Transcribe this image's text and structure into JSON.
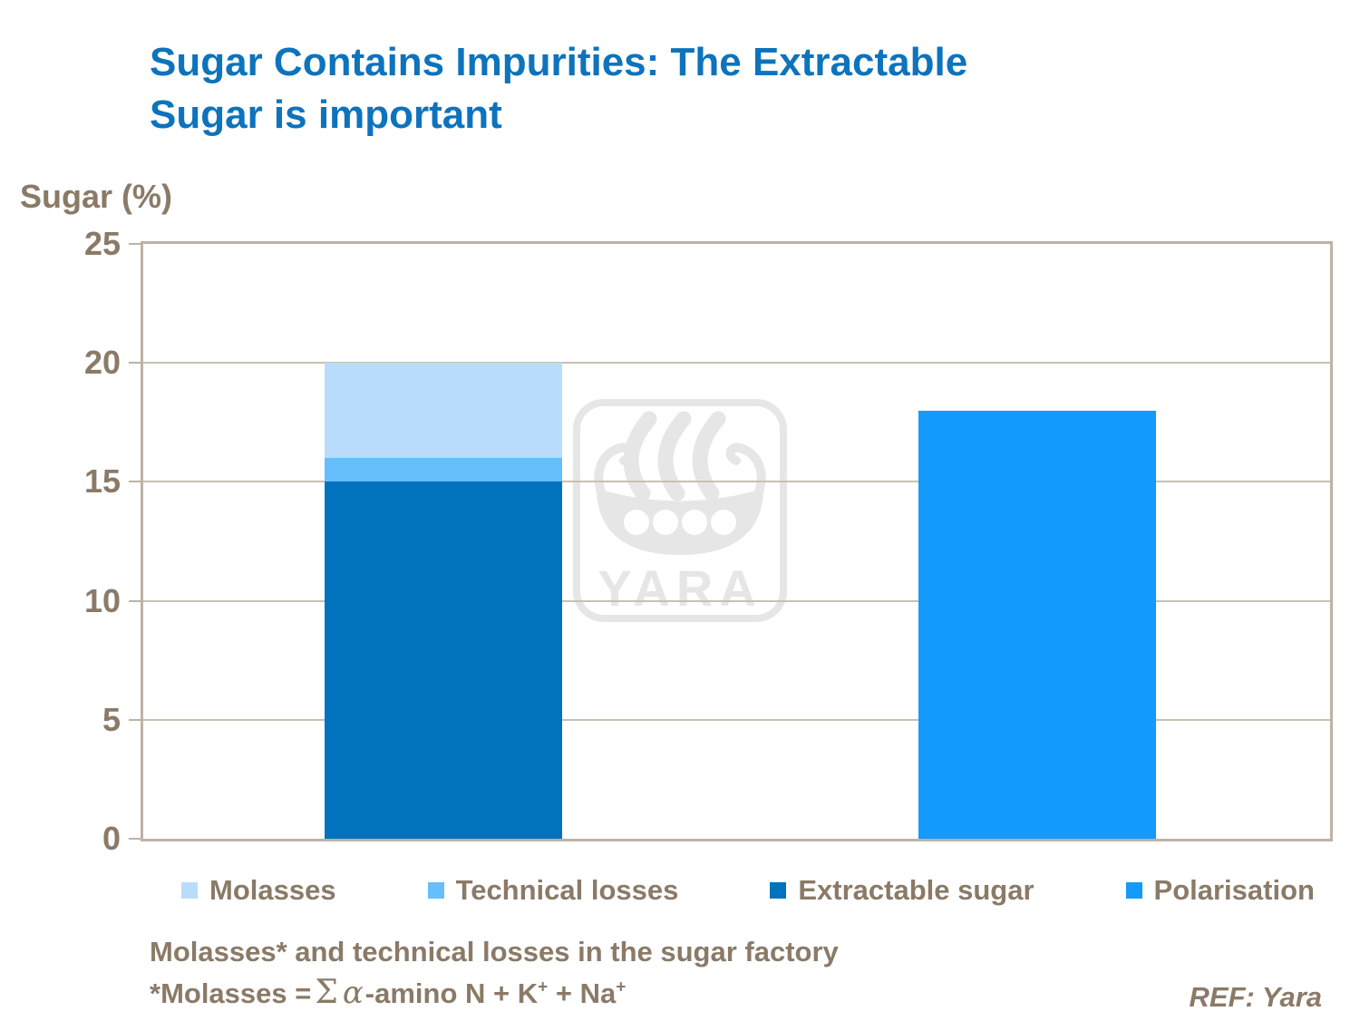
{
  "title": {
    "line1": "Sugar Contains Impurities: The Extractable",
    "line2": "Sugar is important"
  },
  "y_axis_title": "Sugar (%)",
  "legend": {
    "items": [
      {
        "label": "Molasses",
        "color_key": "molasses"
      },
      {
        "label": "Technical losses",
        "color_key": "technical"
      },
      {
        "label": "Extractable sugar",
        "color_key": "extractable"
      },
      {
        "label": "Polarisation",
        "color_key": "polarisation"
      }
    ]
  },
  "footnote": {
    "line1": "Molasses* and technical losses in the sugar factory",
    "formula": {
      "prefix": "*Molasses =",
      "sigma": "Σ",
      "alpha": "α",
      "body": "-amino N + K",
      "sup1": "+",
      "body2": " + Na",
      "sup2": "+"
    }
  },
  "reference": "REF: Yara",
  "watermark": {
    "name": "yara-logo",
    "text": "YARA"
  },
  "colors": {
    "title_blue": "#0D73BD",
    "text_brown": "#8A7A67",
    "axis_border": "#BEB2A3",
    "gridline": "#C9C0B1",
    "watermark_gray": "#E6E6E6",
    "molasses": "#B9DCFC",
    "technical": "#66BEFC",
    "extractable": "#0072BE",
    "polarisation": "#149AFB"
  },
  "chart_data": {
    "type": "bar",
    "stacked": true,
    "title": "Sugar Contains Impurities: The Extractable Sugar is important",
    "xlabel": "",
    "ylabel": "Sugar (%)",
    "ylim": [
      0,
      25
    ],
    "yticks": [
      0,
      5,
      10,
      15,
      20,
      25
    ],
    "grid": true,
    "legend_position": "bottom",
    "categories": [
      "",
      ""
    ],
    "bars": [
      {
        "total": 20,
        "segments": [
          {
            "name": "Extractable sugar",
            "color_key": "extractable",
            "value": 15
          },
          {
            "name": "Technical losses",
            "color_key": "technical",
            "value": 1
          },
          {
            "name": "Molasses",
            "color_key": "molasses",
            "value": 4
          }
        ]
      },
      {
        "total": 18,
        "segments": [
          {
            "name": "Polarisation",
            "color_key": "polarisation",
            "value": 18
          }
        ]
      }
    ]
  }
}
